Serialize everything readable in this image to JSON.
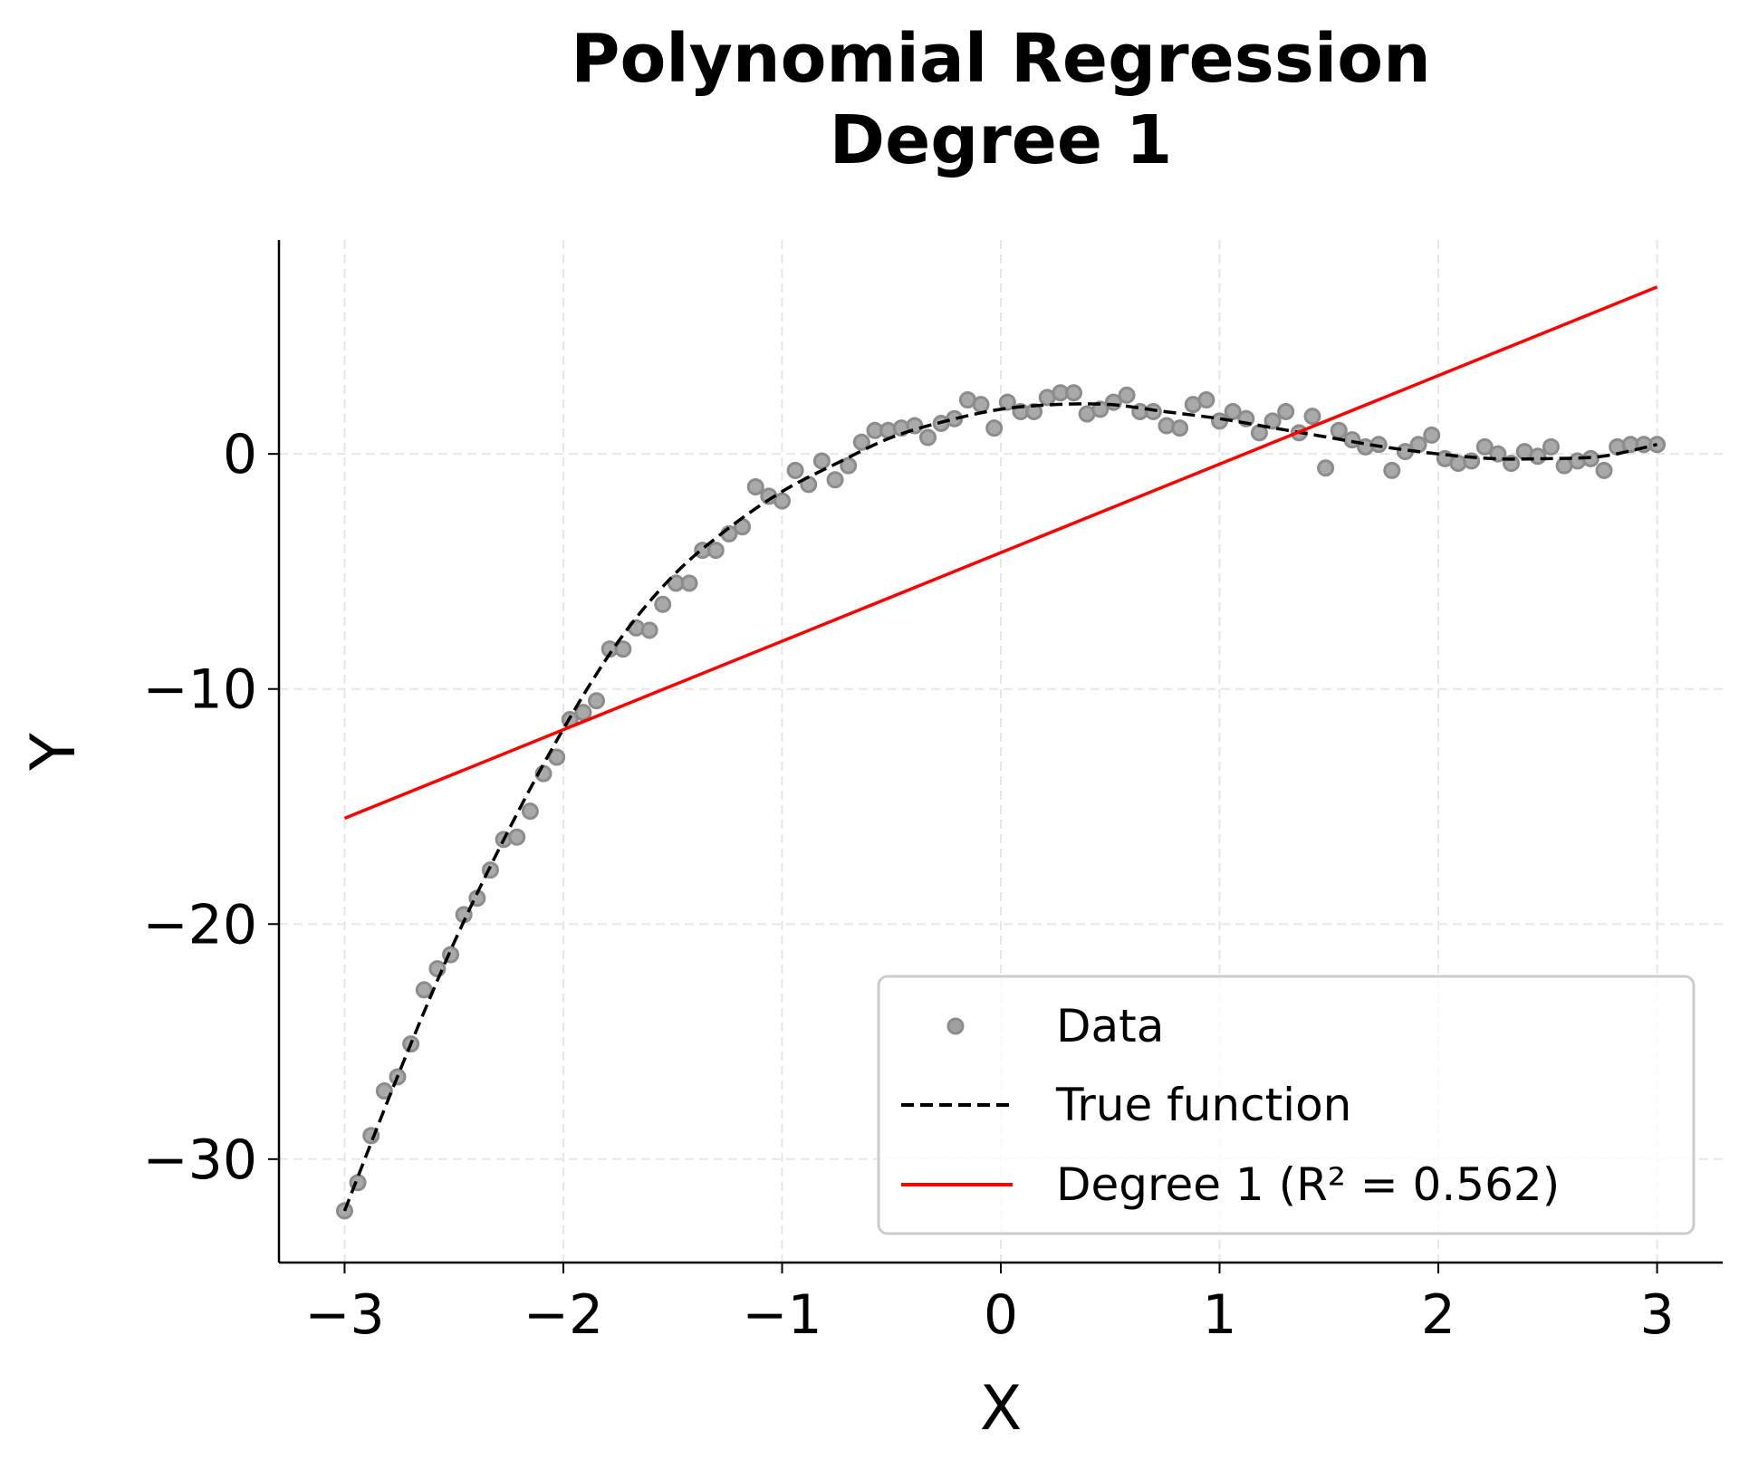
{
  "chart_data": {
    "type": "scatter",
    "title": [
      "Polynomial Regression",
      "Degree 1"
    ],
    "xlabel": "X",
    "ylabel": "Y",
    "xlim": [
      -3.3,
      3.3
    ],
    "ylim": [
      -34.4,
      9.1
    ],
    "xticks": [
      -3,
      -2,
      -1,
      0,
      1,
      2,
      3
    ],
    "xtick_labels": [
      "−3",
      "−2",
      "−1",
      "0",
      "1",
      "2",
      "3"
    ],
    "yticks": [
      -30,
      -20,
      -10,
      0
    ],
    "ytick_labels": [
      "−30",
      "−20",
      "−10",
      "0"
    ],
    "grid": true,
    "legend_placement": "lower-right",
    "colors": {
      "data": "#a0a0a0",
      "data_edge": "#8c8c8c",
      "true_function": "#000000",
      "fit": "#ff0000",
      "grid": "#e6e6e6"
    },
    "series": [
      {
        "name": "Data",
        "kind": "scatter",
        "x_range": [
          -3,
          3
        ],
        "y": [
          -32.2,
          -31.0,
          -29.0,
          -27.1,
          -26.5,
          -25.1,
          -22.8,
          -21.9,
          -21.3,
          -19.6,
          -18.9,
          -17.7,
          -16.4,
          -16.3,
          -15.2,
          -13.6,
          -12.9,
          -11.3,
          -11.0,
          -10.5,
          -8.3,
          -8.3,
          -7.4,
          -7.5,
          -6.4,
          -5.5,
          -5.5,
          -4.1,
          -4.1,
          -3.4,
          -3.1,
          -1.4,
          -1.8,
          -2.0,
          -0.7,
          -1.3,
          -0.3,
          -1.1,
          -0.5,
          0.5,
          1.0,
          1.0,
          1.1,
          1.2,
          0.7,
          1.3,
          1.5,
          2.3,
          2.1,
          1.1,
          2.2,
          1.8,
          1.8,
          2.4,
          2.6,
          2.6,
          1.7,
          1.9,
          2.2,
          2.5,
          1.8,
          1.8,
          1.2,
          1.1,
          2.1,
          2.3,
          1.4,
          1.8,
          1.5,
          0.9,
          1.4,
          1.8,
          0.9,
          1.6,
          -0.6,
          1.0,
          0.6,
          0.3,
          0.4,
          -0.7,
          0.1,
          0.4,
          0.8,
          -0.2,
          -0.4,
          -0.3,
          0.3,
          0.0,
          -0.4,
          0.1,
          -0.1,
          0.3,
          -0.5,
          -0.3,
          -0.2,
          -0.7,
          0.3,
          0.4,
          0.4,
          0.4
        ]
      },
      {
        "name": "True function",
        "kind": "line-dashed",
        "x": [
          -3,
          -2.75,
          -2.5,
          -2.25,
          -2,
          -1.75,
          -1.5,
          -1.25,
          -1,
          -0.75,
          -0.5,
          -0.25,
          0,
          0.25,
          0.5,
          0.75,
          1,
          1.25,
          1.5,
          1.75,
          2,
          2.25,
          2.5,
          2.75,
          3
        ],
        "y": [
          -32.2,
          -26.3,
          -20.8,
          -16.0,
          -11.7,
          -8.0,
          -5.2,
          -3.2,
          -1.6,
          -0.4,
          0.7,
          1.4,
          1.9,
          2.1,
          2.1,
          1.8,
          1.5,
          1.1,
          0.7,
          0.3,
          0.0,
          -0.2,
          -0.2,
          -0.1,
          0.4
        ]
      },
      {
        "name": "Degree 1 (R² = 0.562)",
        "kind": "line",
        "x": [
          -3,
          3
        ],
        "y": [
          -15.5,
          7.1
        ]
      }
    ]
  }
}
